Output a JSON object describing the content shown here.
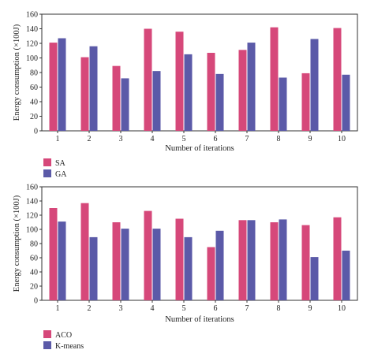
{
  "chart_data": [
    {
      "type": "bar",
      "xlabel": "Number of iterations",
      "ylabel": "Energy consumption (×100J)",
      "categories": [
        "1",
        "2",
        "3",
        "4",
        "5",
        "6",
        "7",
        "8",
        "9",
        "10"
      ],
      "yticks": [
        "0",
        "20",
        "40",
        "60",
        "80",
        "100",
        "120",
        "140",
        "160"
      ],
      "ylim": [
        0,
        160
      ],
      "legend_position": "bottom-left",
      "grid": false,
      "series": [
        {
          "name": "SA",
          "color": "#d6487a",
          "values": [
            121,
            101,
            89,
            140,
            136,
            107,
            111,
            142,
            79,
            141
          ]
        },
        {
          "name": "GA",
          "color": "#5b5aa8",
          "values": [
            127,
            116,
            72,
            82,
            105,
            78,
            121,
            73,
            126,
            77
          ]
        }
      ]
    },
    {
      "type": "bar",
      "xlabel": "Number of iterations",
      "ylabel": "Energy consumption (×100J)",
      "categories": [
        "1",
        "2",
        "3",
        "4",
        "5",
        "6",
        "7",
        "8",
        "9",
        "10"
      ],
      "yticks": [
        "0",
        "20",
        "40",
        "60",
        "80",
        "100",
        "120",
        "140",
        "160"
      ],
      "ylim": [
        0,
        160
      ],
      "legend_position": "bottom-left",
      "grid": false,
      "series": [
        {
          "name": "ACO",
          "color": "#d6487a",
          "values": [
            130,
            137,
            110,
            126,
            115,
            75,
            113,
            110,
            106,
            117
          ]
        },
        {
          "name": "K-means",
          "color": "#5b5aa8",
          "values": [
            111,
            89,
            101,
            101,
            89,
            98,
            113,
            114,
            61,
            70
          ]
        }
      ]
    }
  ]
}
